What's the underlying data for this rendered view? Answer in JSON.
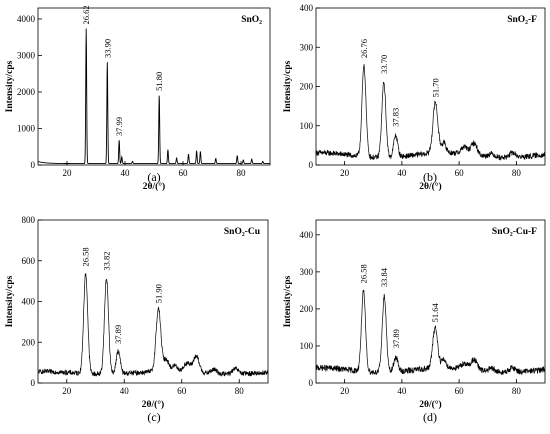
{
  "chart_data": [
    {
      "type": "line",
      "panel": "(a)",
      "label": "SnO₂",
      "xlabel": "2θ/(°)",
      "ylabel": "Intensity/cps",
      "xlim": [
        10,
        90
      ],
      "ylim": [
        0,
        4300
      ],
      "xticks": [
        20,
        40,
        60,
        80
      ],
      "yticks": [
        0,
        1000,
        2000,
        3000,
        4000
      ],
      "baseline": 40,
      "peaks": [
        {
          "x": 26.62,
          "y": 3700,
          "w": 0.22,
          "label": "26.62"
        },
        {
          "x": 33.9,
          "y": 2780,
          "w": 0.22,
          "label": "33.90"
        },
        {
          "x": 37.99,
          "y": 640,
          "w": 0.22,
          "label": "37.99"
        },
        {
          "x": 38.9,
          "y": 180,
          "w": 0.22
        },
        {
          "x": 42.6,
          "y": 60,
          "w": 0.22
        },
        {
          "x": 51.8,
          "y": 1880,
          "w": 0.22,
          "label": "51.80"
        },
        {
          "x": 54.8,
          "y": 380,
          "w": 0.22
        },
        {
          "x": 57.8,
          "y": 150,
          "w": 0.22
        },
        {
          "x": 61.9,
          "y": 260,
          "w": 0.22
        },
        {
          "x": 64.7,
          "y": 340,
          "w": 0.22
        },
        {
          "x": 66.0,
          "y": 330,
          "w": 0.22
        },
        {
          "x": 71.3,
          "y": 140,
          "w": 0.22
        },
        {
          "x": 78.7,
          "y": 220,
          "w": 0.22
        },
        {
          "x": 80.8,
          "y": 100,
          "w": 0.22
        },
        {
          "x": 83.7,
          "y": 120,
          "w": 0.22
        },
        {
          "x": 87.5,
          "y": 60,
          "w": 0.22
        }
      ]
    },
    {
      "type": "line",
      "panel": "(b)",
      "label": "SnO₂-F",
      "xlabel": "2θ/(°)",
      "ylabel": "Intensity/cps",
      "xlim": [
        10,
        90
      ],
      "ylim": [
        0,
        400
      ],
      "xticks": [
        20,
        40,
        60,
        80
      ],
      "yticks": [
        0,
        100,
        200,
        300,
        400
      ],
      "baseline": 25,
      "noise": 7,
      "peaks": [
        {
          "x": 26.76,
          "y": 230,
          "w": 1.0,
          "label": "26.76"
        },
        {
          "x": 33.7,
          "y": 190,
          "w": 1.0,
          "label": "33.70"
        },
        {
          "x": 37.83,
          "y": 55,
          "w": 1.0,
          "label": "37.83"
        },
        {
          "x": 51.7,
          "y": 130,
          "w": 1.2,
          "label": "51.70"
        },
        {
          "x": 54.6,
          "y": 25,
          "w": 1.2
        },
        {
          "x": 61.8,
          "y": 18,
          "w": 1.5
        },
        {
          "x": 65.2,
          "y": 30,
          "w": 1.5
        },
        {
          "x": 71.3,
          "y": 8,
          "w": 1.5
        },
        {
          "x": 78.7,
          "y": 12,
          "w": 1.5
        }
      ]
    },
    {
      "type": "line",
      "panel": "(c)",
      "label": "SnO₂-Cu",
      "xlabel": "2θ/(°)",
      "ylabel": "Intensity/cps",
      "xlim": [
        10,
        90
      ],
      "ylim": [
        0,
        800
      ],
      "xticks": [
        20,
        40,
        60,
        80
      ],
      "yticks": [
        0,
        200,
        400,
        600,
        800
      ],
      "baseline": 50,
      "noise": 12,
      "peaks": [
        {
          "x": 26.58,
          "y": 490,
          "w": 1.0,
          "label": "26.58"
        },
        {
          "x": 33.82,
          "y": 470,
          "w": 1.0,
          "label": "33.82"
        },
        {
          "x": 37.89,
          "y": 110,
          "w": 1.0,
          "label": "37.89"
        },
        {
          "x": 51.9,
          "y": 310,
          "w": 1.2,
          "label": "51.90"
        },
        {
          "x": 54.6,
          "y": 60,
          "w": 1.2
        },
        {
          "x": 57.6,
          "y": 30,
          "w": 1.5
        },
        {
          "x": 61.8,
          "y": 45,
          "w": 1.5
        },
        {
          "x": 65.0,
          "y": 80,
          "w": 1.5
        },
        {
          "x": 71.2,
          "y": 20,
          "w": 1.5
        },
        {
          "x": 78.7,
          "y": 25,
          "w": 1.5
        }
      ]
    },
    {
      "type": "line",
      "panel": "(d)",
      "label": "SnO₂-Cu-F",
      "xlabel": "2θ/(°)",
      "ylabel": "Intensity/cps",
      "xlim": [
        10,
        90
      ],
      "ylim": [
        0,
        440
      ],
      "xticks": [
        20,
        40,
        60,
        80
      ],
      "yticks": [
        0,
        100,
        200,
        300,
        400
      ],
      "baseline": 35,
      "noise": 8,
      "peaks": [
        {
          "x": 26.58,
          "y": 215,
          "w": 1.0,
          "label": "26.58"
        },
        {
          "x": 33.84,
          "y": 205,
          "w": 1.0,
          "label": "33.84"
        },
        {
          "x": 37.89,
          "y": 40,
          "w": 1.0,
          "label": "37.89"
        },
        {
          "x": 51.64,
          "y": 110,
          "w": 1.2,
          "label": "51.64"
        },
        {
          "x": 54.6,
          "y": 22,
          "w": 1.2
        },
        {
          "x": 61.8,
          "y": 15,
          "w": 1.5
        },
        {
          "x": 65.2,
          "y": 28,
          "w": 1.5
        },
        {
          "x": 71.3,
          "y": 8,
          "w": 1.5
        },
        {
          "x": 78.7,
          "y": 12,
          "w": 1.5
        }
      ]
    }
  ]
}
